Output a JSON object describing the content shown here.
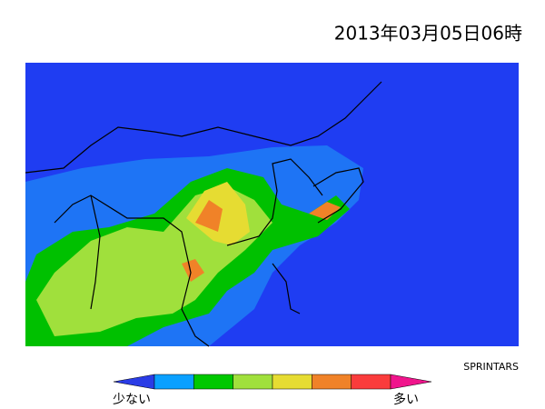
{
  "header": {
    "title": "2013年03月05日06時"
  },
  "map": {
    "credit": "SPRINTARS"
  },
  "colorbar": {
    "low_label": "少ない",
    "high_label": "多い",
    "colors": [
      "#2a3ce6",
      "#0aa0ff",
      "#00c800",
      "#a0e03c",
      "#e6dc32",
      "#f08228",
      "#fa3c3c",
      "#f0148c"
    ]
  }
}
